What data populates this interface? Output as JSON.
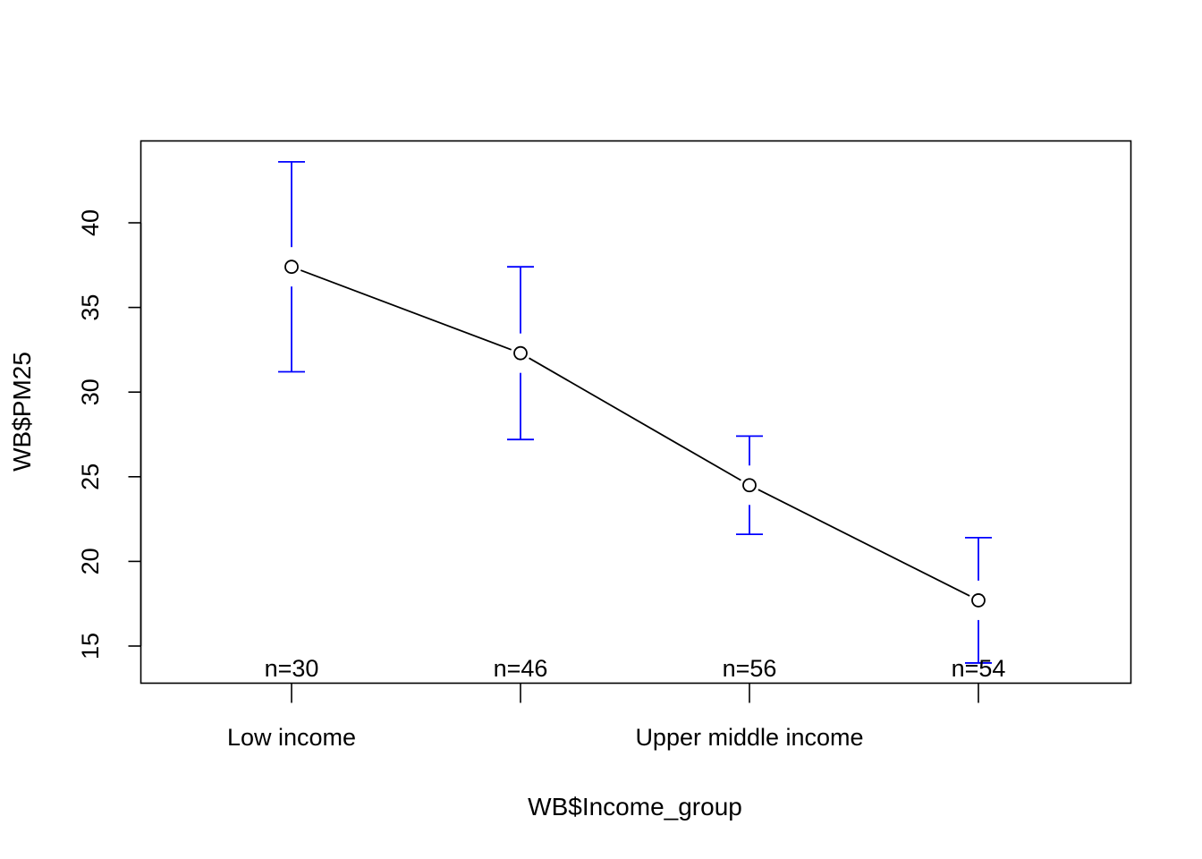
{
  "chart_data": {
    "type": "line",
    "title": "",
    "xlabel": "WB$Income_group",
    "ylabel": "WB$PM25",
    "categories": [
      "Low income",
      "",
      "Upper middle income",
      ""
    ],
    "n_labels": [
      "n=30",
      "n=46",
      "n=56",
      "n=54"
    ],
    "series": [
      {
        "values": [
          37.4,
          32.3,
          24.5,
          17.7
        ],
        "ci_upper": [
          43.6,
          37.4,
          27.4,
          21.4
        ],
        "ci_lower": [
          31.2,
          27.2,
          21.6,
          14.0
        ]
      }
    ],
    "yticks": [
      15,
      20,
      25,
      30,
      35,
      40
    ],
    "ylim": [
      13,
      45
    ],
    "grid": false,
    "colors": {
      "line": "#000000",
      "error_bars": "#0000ff"
    }
  }
}
